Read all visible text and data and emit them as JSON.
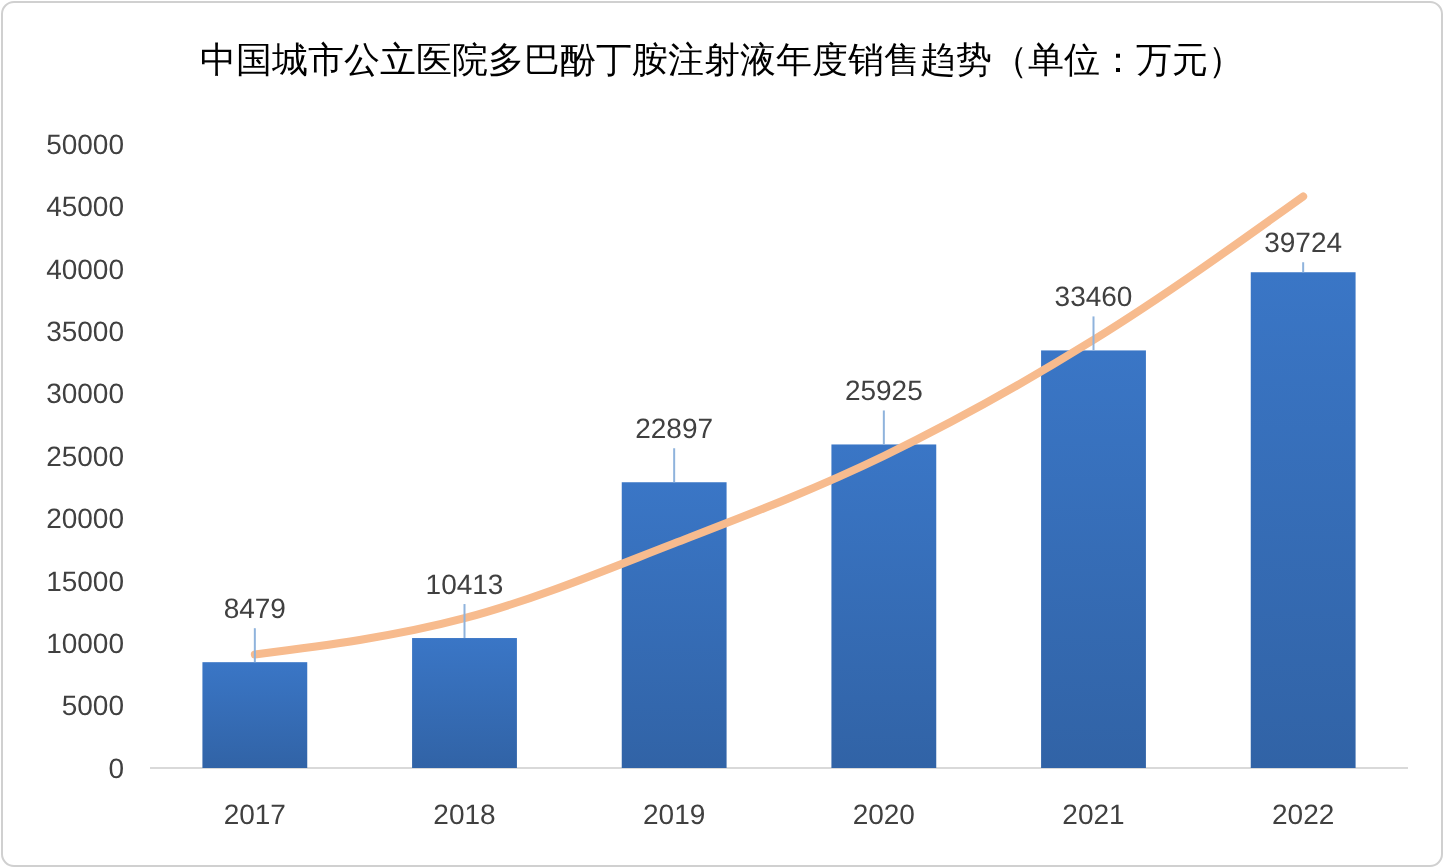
{
  "chart_data": {
    "type": "bar",
    "title": "中国城市公立医院多巴酚丁胺注射液年度销售趋势（单位：万元）",
    "categories": [
      "2017",
      "2018",
      "2019",
      "2020",
      "2021",
      "2022"
    ],
    "series": [
      {
        "color": "#3a76c6",
        "values": [
          8479,
          10413,
          22897,
          25925,
          33460,
          39724
        ],
        "value_labels": [
          "8479",
          "10413",
          "22897",
          "25925",
          "33460",
          "39724"
        ]
      },
      {
        "type": "line",
        "color": "#f7bb8e",
        "values": [
          9100,
          12000,
          18000,
          25000,
          34300,
          45800
        ]
      }
    ],
    "ylim": [
      0,
      50000
    ],
    "yticks": [
      0,
      5000,
      10000,
      15000,
      20000,
      25000,
      30000,
      35000,
      40000,
      45000,
      50000
    ],
    "grid": false
  }
}
